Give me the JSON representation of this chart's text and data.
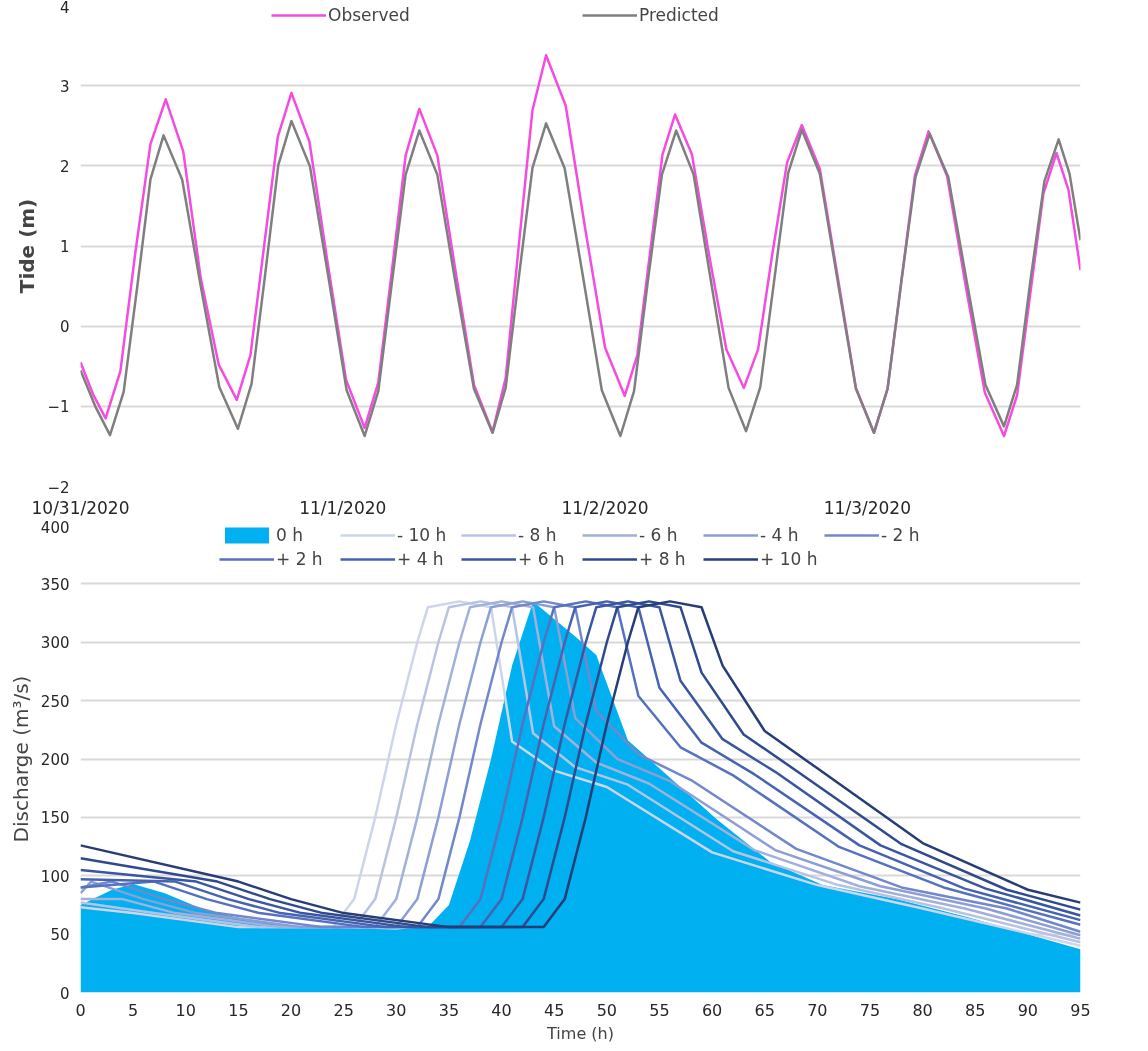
{
  "chart_data": [
    {
      "type": "line",
      "ylabel": "Tide (m)",
      "xlim": [
        "2020-10-31T00:00",
        "2020-11-03T19:30"
      ],
      "xticks": [
        {
          "value": "2020-10-31",
          "label": "10/31/2020"
        },
        {
          "value": "2020-11-01",
          "label": "11/1/2020"
        },
        {
          "value": "2020-11-02",
          "label": "11/2/2020"
        },
        {
          "value": "2020-11-03",
          "label": "11/3/2020"
        }
      ],
      "ylim": [
        -2,
        4
      ],
      "yticks": [
        -2,
        -1,
        0,
        1,
        2,
        3,
        4
      ],
      "grid": "y",
      "legend": "top",
      "series": [
        {
          "name": "Observed",
          "color": "#f54ce0",
          "x": [
            "2020-10-31T00:00",
            "2020-10-31T01:09",
            "2020-10-31T02:18",
            "2020-10-31T03:39",
            "2020-10-31T05:00",
            "2020-10-31T06:24",
            "2020-10-31T07:48",
            "2020-10-31T09:24",
            "2020-10-31T11:00",
            "2020-10-31T12:39",
            "2020-10-31T14:18",
            "2020-10-31T15:33",
            "2020-10-31T16:48",
            "2020-10-31T18:03",
            "2020-10-31T19:18",
            "2020-10-31T20:57",
            "2020-10-31T22:36",
            "2020-11-01T00:18",
            "2020-11-01T02:00",
            "2020-11-01T03:15",
            "2020-11-01T04:30",
            "2020-11-01T05:45",
            "2020-11-01T07:00",
            "2020-11-01T08:39",
            "2020-11-01T10:18",
            "2020-11-01T12:00",
            "2020-11-01T13:42",
            "2020-11-01T14:54",
            "2020-11-01T16:06",
            "2020-11-01T17:21",
            "2020-11-01T18:36",
            "2020-11-01T20:24",
            "2020-11-01T22:12",
            "2020-11-02T00:00",
            "2020-11-02T01:48",
            "2020-11-02T02:57",
            "2020-11-02T04:06",
            "2020-11-02T05:15",
            "2020-11-02T06:24",
            "2020-11-02T07:57",
            "2020-11-02T09:30",
            "2020-11-02T11:06",
            "2020-11-02T12:42",
            "2020-11-02T14:00",
            "2020-11-02T15:18",
            "2020-11-02T16:39",
            "2020-11-02T18:00",
            "2020-11-02T19:39",
            "2020-11-02T21:18",
            "2020-11-02T22:57",
            "2020-11-03T00:36",
            "2020-11-03T01:51",
            "2020-11-03T03:06",
            "2020-11-03T04:21",
            "2020-11-03T05:36",
            "2020-11-03T07:18",
            "2020-11-03T09:00",
            "2020-11-03T10:45",
            "2020-11-03T12:30",
            "2020-11-03T13:42",
            "2020-11-03T14:54",
            "2020-11-03T16:06",
            "2020-11-03T17:18",
            "2020-11-03T18:24",
            "2020-11-03T19:30"
          ],
          "values": [
            -0.45,
            -0.85,
            -1.15,
            -0.56,
            0.9,
            2.27,
            2.83,
            2.18,
            0.6,
            -0.48,
            -0.92,
            -0.36,
            1.0,
            2.36,
            2.91,
            2.3,
            0.8,
            -0.67,
            -1.27,
            -0.7,
            0.7,
            2.13,
            2.71,
            2.13,
            0.7,
            -0.73,
            -1.32,
            -0.65,
            1.0,
            2.69,
            3.38,
            2.75,
            1.2,
            -0.27,
            -0.87,
            -0.36,
            0.9,
            2.14,
            2.64,
            2.14,
            0.9,
            -0.29,
            -0.77,
            -0.29,
            0.9,
            2.04,
            2.51,
            1.96,
            0.6,
            -0.77,
            -1.33,
            -0.78,
            0.55,
            1.88,
            2.43,
            1.87,
            0.5,
            -0.83,
            -1.37,
            -0.86,
            0.4,
            1.65,
            2.16,
            1.7,
            0.7
          ]
        },
        {
          "name": "Predicted",
          "color": "#7f7f7f",
          "x": [
            "2020-10-31T00:00",
            "2020-10-31T01:21",
            "2020-10-31T02:42",
            "2020-10-31T03:57",
            "2020-10-31T05:12",
            "2020-10-31T06:24",
            "2020-10-31T07:36",
            "2020-10-31T09:18",
            "2020-10-31T11:00",
            "2020-10-31T12:42",
            "2020-10-31T14:24",
            "2020-10-31T15:39",
            "2020-10-31T16:54",
            "2020-10-31T18:06",
            "2020-10-31T19:18",
            "2020-10-31T21:00",
            "2020-10-31T22:42",
            "2020-11-01T00:21",
            "2020-11-01T02:00",
            "2020-11-01T03:15",
            "2020-11-01T04:30",
            "2020-11-01T05:45",
            "2020-11-01T07:00",
            "2020-11-01T08:39",
            "2020-11-01T10:18",
            "2020-11-01T12:00",
            "2020-11-01T13:42",
            "2020-11-01T14:54",
            "2020-11-01T16:06",
            "2020-11-01T17:21",
            "2020-11-01T18:36",
            "2020-11-01T20:18",
            "2020-11-01T22:00",
            "2020-11-01T23:42",
            "2020-11-02T01:24",
            "2020-11-02T02:39",
            "2020-11-02T03:54",
            "2020-11-02T05:12",
            "2020-11-02T06:30",
            "2020-11-02T08:06",
            "2020-11-02T09:42",
            "2020-11-02T11:18",
            "2020-11-02T12:54",
            "2020-11-02T14:12",
            "2020-11-02T15:30",
            "2020-11-02T16:45",
            "2020-11-02T18:00",
            "2020-11-02T19:39",
            "2020-11-02T21:18",
            "2020-11-02T22:57",
            "2020-11-03T00:36",
            "2020-11-03T01:51",
            "2020-11-03T03:06",
            "2020-11-03T04:24",
            "2020-11-03T05:42",
            "2020-11-03T07:24",
            "2020-11-03T09:06",
            "2020-11-03T10:48",
            "2020-11-03T12:30",
            "2020-11-03T13:42",
            "2020-11-03T14:54",
            "2020-11-03T16:12",
            "2020-11-03T17:30",
            "2020-11-03T18:30",
            "2020-11-03T19:30"
          ],
          "values": [
            -0.55,
            -1.0,
            -1.36,
            -0.82,
            0.5,
            1.83,
            2.38,
            1.83,
            0.5,
            -0.76,
            -1.28,
            -0.72,
            0.65,
            2.01,
            2.56,
            1.99,
            0.6,
            -0.8,
            -1.37,
            -0.81,
            0.55,
            1.89,
            2.44,
            1.89,
            0.55,
            -0.78,
            -1.33,
            -0.77,
            0.6,
            1.97,
            2.53,
            1.97,
            0.6,
            -0.8,
            -1.37,
            -0.81,
            0.55,
            1.89,
            2.44,
            1.89,
            0.55,
            -0.77,
            -1.31,
            -0.76,
            0.6,
            1.91,
            2.45,
            1.9,
            0.55,
            -0.78,
            -1.33,
            -0.78,
            0.55,
            1.86,
            2.4,
            1.86,
            0.55,
            -0.73,
            -1.25,
            -0.73,
            0.55,
            1.81,
            2.33,
            1.9,
            1.07
          ]
        }
      ]
    },
    {
      "type": "line",
      "xlabel": "Time (h)",
      "ylabel": "Discharge (m³/s)",
      "xlim": [
        0,
        95
      ],
      "xticks": [
        0,
        5,
        10,
        15,
        20,
        25,
        30,
        35,
        40,
        45,
        50,
        55,
        60,
        65,
        70,
        75,
        80,
        85,
        90,
        95
      ],
      "ylim": [
        0,
        400
      ],
      "yticks": [
        0,
        50,
        100,
        150,
        200,
        250,
        300,
        350,
        400
      ],
      "grid": "y",
      "legend": "top",
      "series": [
        {
          "name": "0 h",
          "type": "area",
          "color": "#00b0f0",
          "x": [
            0,
            3,
            5,
            8,
            12,
            16,
            20,
            25,
            30,
            33,
            35,
            37,
            39,
            41,
            43,
            45,
            47,
            49,
            52,
            55.5,
            60.5,
            65.5,
            70.5,
            77.5,
            84.5,
            95
          ],
          "values": [
            75,
            88,
            93,
            85,
            70,
            62,
            57,
            55,
            54,
            56,
            75,
            130,
            200,
            280,
            335,
            320,
            305,
            289,
            216,
            188,
            148,
            112,
            92,
            80,
            64,
            37
          ]
        },
        {
          "name": "- 10 h",
          "color": "#cdd5ea",
          "x": [
            0,
            5,
            15,
            24,
            26,
            28,
            30,
            32,
            33,
            36,
            39,
            41,
            45,
            50,
            60,
            70,
            80,
            95
          ],
          "values": [
            73,
            68,
            56,
            56,
            80,
            150,
            230,
            300,
            330,
            335,
            330,
            215,
            190,
            176,
            120,
            92,
            72,
            40
          ]
        },
        {
          "name": "- 8 h",
          "color": "#b7c3e3",
          "x": [
            0,
            7,
            17,
            26,
            28,
            30,
            32,
            34,
            35,
            38,
            41,
            43,
            47,
            52,
            62,
            72,
            82,
            95
          ],
          "values": [
            77,
            68,
            56,
            56,
            80,
            150,
            230,
            300,
            330,
            335,
            330,
            222,
            193,
            178,
            121,
            92,
            72,
            43
          ]
        },
        {
          "name": "- 6 h",
          "color": "#a2b1dc",
          "x": [
            0,
            4,
            9,
            19,
            28,
            30,
            32,
            34,
            36,
            37,
            40,
            43,
            45,
            49,
            54,
            64,
            74,
            84,
            95
          ],
          "values": [
            80,
            80,
            68,
            56,
            56,
            80,
            150,
            230,
            300,
            330,
            335,
            330,
            228,
            197,
            179,
            122,
            91,
            72,
            46
          ]
        },
        {
          "name": "- 4 h",
          "color": "#8b9fd4",
          "x": [
            0,
            1,
            6,
            11,
            21,
            30,
            32,
            34,
            36,
            38,
            39,
            42,
            45,
            47,
            51,
            56,
            66,
            76,
            86,
            95
          ],
          "values": [
            85,
            95,
            80,
            68,
            56,
            56,
            80,
            150,
            230,
            300,
            330,
            335,
            330,
            235,
            200,
            181,
            122,
            91,
            72,
            49
          ]
        },
        {
          "name": "- 2 h",
          "color": "#7288cc",
          "x": [
            0,
            3,
            8,
            13,
            23,
            32,
            34,
            36,
            38,
            40,
            41,
            44,
            47,
            49,
            53,
            58,
            68,
            78,
            88,
            95
          ],
          "values": [
            90,
            95,
            80,
            68,
            56,
            56,
            80,
            150,
            230,
            300,
            330,
            335,
            330,
            241,
            204,
            182,
            123,
            90,
            72,
            52
          ]
        },
        {
          "name": "+ 2 h",
          "color": "#5472bf",
          "x": [
            0,
            7,
            12,
            17,
            27,
            36,
            38,
            40,
            42,
            44,
            45,
            48,
            51,
            53,
            57,
            62,
            72,
            82,
            95
          ],
          "values": [
            90,
            95,
            80,
            68,
            56,
            56,
            80,
            150,
            230,
            300,
            330,
            335,
            330,
            254,
            210,
            186,
            125,
            90,
            58
          ]
        },
        {
          "name": "+ 4 h",
          "color": "#4663b1",
          "x": [
            0,
            9,
            14,
            19,
            29,
            38,
            40,
            42,
            44,
            46,
            47,
            50,
            53,
            55,
            59,
            64,
            74,
            84,
            95
          ],
          "values": [
            97,
            95,
            80,
            68,
            56,
            56,
            80,
            150,
            230,
            300,
            330,
            335,
            330,
            261,
            214,
            187,
            126,
            89,
            62
          ]
        },
        {
          "name": "+ 6 h",
          "color": "#3a56a0",
          "x": [
            0,
            11,
            16,
            21,
            31,
            40,
            42,
            44,
            46,
            48,
            49,
            52,
            55,
            57,
            61,
            66,
            76,
            86,
            95
          ],
          "values": [
            105,
            95,
            80,
            68,
            56,
            56,
            80,
            150,
            230,
            300,
            330,
            335,
            330,
            267,
            217,
            189,
            126,
            89,
            66
          ]
        },
        {
          "name": "+ 8 h",
          "color": "#2f4a8d",
          "x": [
            0,
            13,
            18,
            23,
            33,
            42,
            44,
            46,
            48,
            50,
            51,
            54,
            57,
            59,
            63,
            68,
            78,
            88,
            95
          ],
          "values": [
            115,
            95,
            80,
            68,
            56,
            56,
            80,
            150,
            230,
            300,
            330,
            335,
            330,
            274,
            221,
            190,
            127,
            88,
            71
          ]
        },
        {
          "name": "+ 10 h",
          "color": "#263d78",
          "x": [
            0,
            15,
            20,
            25,
            35,
            44,
            46,
            48,
            50,
            52,
            53,
            56,
            59,
            61,
            65,
            70,
            80,
            90,
            95
          ],
          "values": [
            126,
            95,
            80,
            68,
            56,
            56,
            80,
            150,
            230,
            300,
            330,
            335,
            330,
            280,
            224,
            192,
            128,
            88,
            77
          ]
        }
      ]
    }
  ]
}
